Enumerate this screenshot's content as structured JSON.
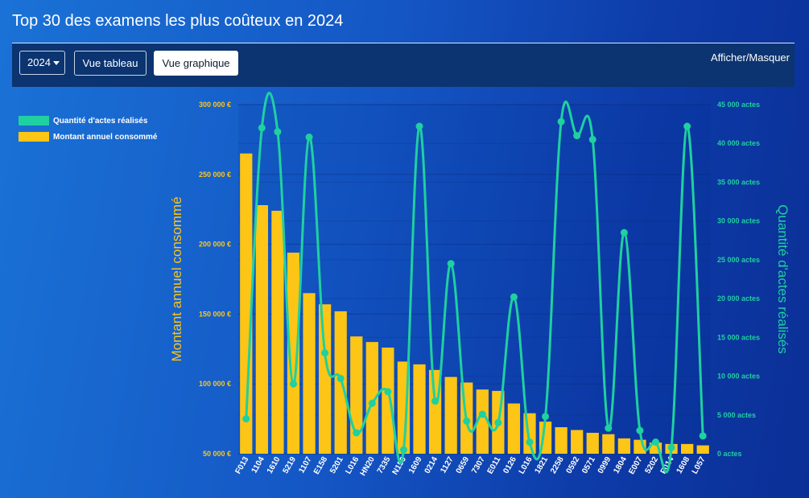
{
  "header": {
    "title": "Top 30 des examens les plus coûteux en 2024"
  },
  "toolbar": {
    "year": "2024",
    "table_view_label": "Vue tableau",
    "chart_view_label": "Vue graphique",
    "toggle_label": "Afficher/Masquer"
  },
  "colors": {
    "bar": "#fdc515",
    "line": "#1fd0a0",
    "left_axis": "#fdc515",
    "right_axis": "#1fd0a0"
  },
  "chart_data": {
    "type": "bar",
    "categories": [
      "F013",
      "1104",
      "1610",
      "5219",
      "1107",
      "E158",
      "5201",
      "L016",
      "HN20",
      "7335",
      "N156",
      "1609",
      "0214",
      "1127",
      "0659",
      "7307",
      "E011",
      "0126",
      "L016",
      "1821",
      "2258",
      "0592",
      "0571",
      "0999",
      "1804",
      "E007",
      "5202",
      "F014",
      "1608",
      "L057"
    ],
    "series": [
      {
        "name": "Montant annuel consommé",
        "type": "bar",
        "axis": "left",
        "values": [
          265000,
          228000,
          224000,
          194000,
          165000,
          157000,
          152000,
          134000,
          130000,
          126000,
          116000,
          114000,
          110000,
          105000,
          101000,
          96000,
          95000,
          86000,
          79000,
          73000,
          69000,
          67000,
          65000,
          64000,
          61000,
          60000,
          58000,
          57000,
          57000,
          56000
        ]
      },
      {
        "name": "Quantité d'actes réalisés",
        "type": "line",
        "axis": "right",
        "values": [
          4500,
          42000,
          41500,
          9000,
          40800,
          13000,
          9700,
          2700,
          6500,
          8000,
          500,
          42200,
          6800,
          24500,
          4200,
          5100,
          4000,
          20200,
          1500,
          4800,
          42800,
          41000,
          40500,
          3300,
          28500,
          3000,
          1500,
          800,
          42200,
          2300
        ]
      }
    ],
    "left_axis": {
      "label": "Montant annuel consommé",
      "range": [
        50000,
        300000
      ],
      "ticks": [
        "300 000 €",
        "250 000 €",
        "200 000 €",
        "150 000 €",
        "100 000 €",
        "50 000 €"
      ]
    },
    "right_axis": {
      "label": "Quantité d'actes réalisés",
      "range": [
        0,
        45000
      ],
      "ticks": [
        "45 000 actes",
        "40 000 actes",
        "35 000 actes",
        "30 000 actes",
        "25 000 actes",
        "20 000 actes",
        "15 000 actes",
        "10 000 actes",
        "5 000 actes",
        "0 actes"
      ]
    },
    "legend": {
      "position": "top-left",
      "items": [
        "Quantité d'actes réalisés",
        "Montant annuel consommé"
      ]
    }
  }
}
